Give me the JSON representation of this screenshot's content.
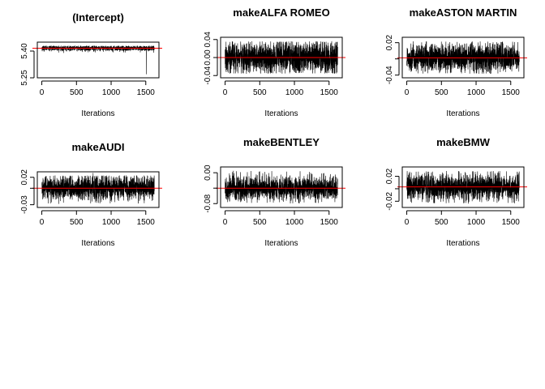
{
  "colors": {
    "trace": "#000000",
    "mean_line": "#ff0000",
    "frame": "#000000",
    "background": "#ffffff"
  },
  "chart_data": [
    {
      "type": "line",
      "title": "(Intercept)",
      "xlabel": "Iterations",
      "ylabel": "",
      "xlim": [
        0,
        1625
      ],
      "ylim": [
        5.25,
        5.45
      ],
      "xticks": [
        0,
        500,
        1000,
        1500
      ],
      "xtick_labels": [
        "0",
        "500",
        "1000",
        "1500"
      ],
      "yticks": [
        5.25,
        5.4
      ],
      "ytick_labels": [
        "5.25",
        "5.40"
      ],
      "n_iterations": 1625,
      "mean": 5.416,
      "spread": 0.008,
      "notable_points": [
        {
          "x": 1510,
          "y": 5.27
        }
      ],
      "reference_line": 5.416
    },
    {
      "type": "line",
      "title": "makeALFA ROMEO",
      "xlabel": "Iterations",
      "ylabel": "",
      "xlim": [
        0,
        1625
      ],
      "ylim": [
        -0.045,
        0.045
      ],
      "xticks": [
        0,
        500,
        1000,
        1500
      ],
      "xtick_labels": [
        "0",
        "500",
        "1000",
        "1500"
      ],
      "yticks": [
        -0.04,
        0.0,
        0.04
      ],
      "ytick_labels": [
        "-0.04",
        "0.00",
        "0.04"
      ],
      "n_iterations": 1625,
      "mean": 0.0,
      "spread": 0.018,
      "notable_points": [],
      "reference_line": 0.0
    },
    {
      "type": "line",
      "title": "makeASTON MARTIN",
      "xlabel": "Iterations",
      "ylabel": "",
      "xlim": [
        0,
        1625
      ],
      "ylim": [
        -0.045,
        0.03
      ],
      "xticks": [
        0,
        500,
        1000,
        1500
      ],
      "xtick_labels": [
        "0",
        "500",
        "1000",
        "1500"
      ],
      "yticks": [
        -0.04,
        -0.01,
        0.02
      ],
      "ytick_labels": [
        "-0.04",
        "",
        "0.02"
      ],
      "n_iterations": 1625,
      "mean": -0.008,
      "spread": 0.013,
      "notable_points": [],
      "reference_line": -0.008
    },
    {
      "type": "line",
      "title": "makeAUDI",
      "xlabel": "Iterations",
      "ylabel": "",
      "xlim": [
        0,
        1625
      ],
      "ylim": [
        -0.035,
        0.03
      ],
      "xticks": [
        0,
        500,
        1000,
        1500
      ],
      "xtick_labels": [
        "0",
        "500",
        "1000",
        "1500"
      ],
      "yticks": [
        -0.03,
        0.0,
        0.02
      ],
      "ytick_labels": [
        "-0.03",
        "",
        "0.02"
      ],
      "n_iterations": 1625,
      "mean": 0.0,
      "spread": 0.011,
      "notable_points": [
        {
          "x": 740,
          "y": 0.028
        }
      ],
      "reference_line": 0.0
    },
    {
      "type": "line",
      "title": "makeBENTLEY",
      "xlabel": "Iterations",
      "ylabel": "",
      "xlim": [
        0,
        1625
      ],
      "ylim": [
        -0.09,
        0.015
      ],
      "xticks": [
        0,
        500,
        1000,
        1500
      ],
      "xtick_labels": [
        "0",
        "500",
        "1000",
        "1500"
      ],
      "yticks": [
        -0.08,
        -0.04,
        0.0
      ],
      "ytick_labels": [
        "-0.08",
        "",
        "0.00"
      ],
      "n_iterations": 1625,
      "mean": -0.04,
      "spread": 0.016,
      "notable_points": [
        {
          "x": 120,
          "y": 0.005
        }
      ],
      "reference_line": -0.04
    },
    {
      "type": "line",
      "title": "makeBMW",
      "xlabel": "Iterations",
      "ylabel": "",
      "xlim": [
        0,
        1625
      ],
      "ylim": [
        -0.03,
        0.035
      ],
      "xticks": [
        0,
        500,
        1000,
        1500
      ],
      "xtick_labels": [
        "0",
        "500",
        "1000",
        "1500"
      ],
      "yticks": [
        -0.02,
        0.0,
        0.02
      ],
      "ytick_labels": [
        "-0.02",
        "",
        "0.02"
      ],
      "n_iterations": 1625,
      "mean": 0.003,
      "spread": 0.011,
      "notable_points": [],
      "reference_line": 0.003
    }
  ]
}
